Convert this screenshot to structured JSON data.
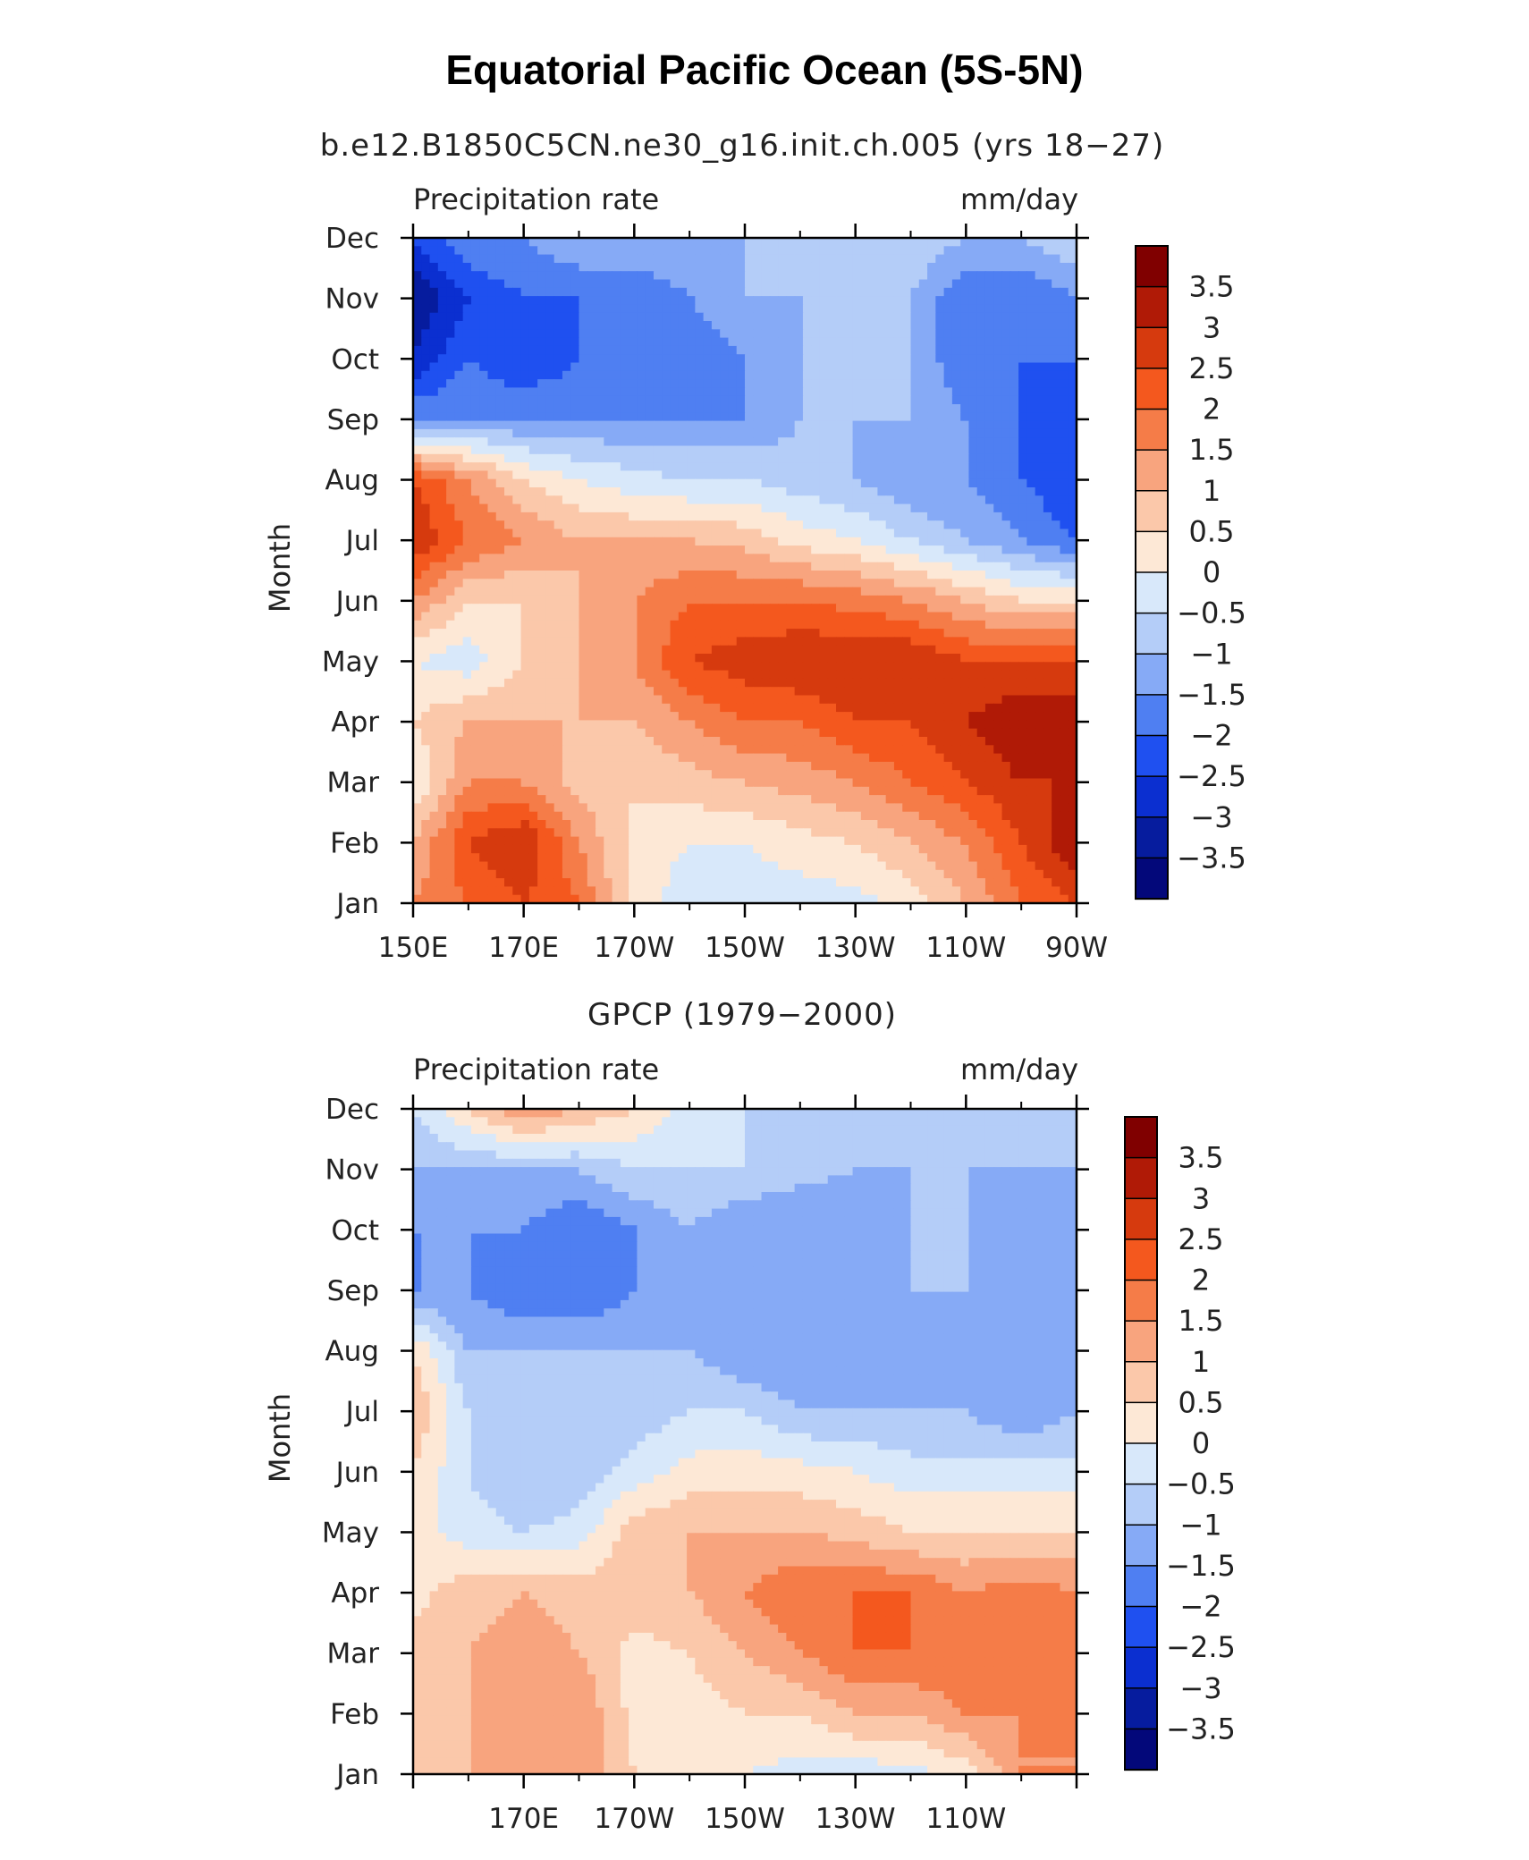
{
  "title": "Equatorial Pacific Ocean (5S-5N)",
  "colorbar": {
    "labels": [
      "3.5",
      "3",
      "2.5",
      "2",
      "1.5",
      "1",
      "0.5",
      "0",
      "−0.5",
      "−1",
      "−1.5",
      "−2",
      "−2.5",
      "−3",
      "−3.5"
    ],
    "colors": [
      "#800000",
      "#b01a06",
      "#d63a0e",
      "#f4581e",
      "#f57c48",
      "#f8a47e",
      "#fbc8aa",
      "#fde8d6",
      "#d8e8fa",
      "#b4cdf8",
      "#86aaf6",
      "#4f7ff2",
      "#1f50f0",
      "#0b2fd0",
      "#061c9e",
      "#03087a"
    ]
  },
  "chart_data": [
    {
      "type": "heatmap",
      "subtitle": "b.e12.B1850C5CN.ne30_g16.init.ch.005 (yrs 18−27)",
      "left_label": "Precipitation rate",
      "right_label": "mm/day",
      "ylabel": "Month",
      "x_tick_labels": [
        "150E",
        "170E",
        "170W",
        "150W",
        "130W",
        "110W",
        "90W"
      ],
      "y_tick_labels": [
        "Jan",
        "Feb",
        "Mar",
        "Apr",
        "May",
        "Jun",
        "Jul",
        "Aug",
        "Sep",
        "Oct",
        "Nov",
        "Dec"
      ],
      "x": [
        "150E",
        "160E",
        "170E",
        "180",
        "170W",
        "160W",
        "150W",
        "140W",
        "130W",
        "120W",
        "110W",
        "100W",
        "90W"
      ],
      "y": [
        "Jan",
        "Feb",
        "Mar",
        "Apr",
        "May",
        "Jun",
        "Jul",
        "Aug",
        "Sep",
        "Oct",
        "Nov",
        "Dec"
      ],
      "z": [
        [
          1.5,
          2.0,
          2.5,
          2.0,
          0.3,
          -0.3,
          -0.3,
          -0.3,
          -0.2,
          0.2,
          1.0,
          2.0,
          2.5
        ],
        [
          1.0,
          2.5,
          3.0,
          1.5,
          0.3,
          0.0,
          0.0,
          0.3,
          0.5,
          1.0,
          1.5,
          2.5,
          3.5
        ],
        [
          0.0,
          1.5,
          1.5,
          0.8,
          0.6,
          0.8,
          1.0,
          1.2,
          1.5,
          2.0,
          2.5,
          3.0,
          3.0
        ],
        [
          0.5,
          1.0,
          1.0,
          1.0,
          1.0,
          1.5,
          2.0,
          2.0,
          2.5,
          2.5,
          3.0,
          3.5,
          3.5
        ],
        [
          0.0,
          -0.3,
          0.5,
          1.0,
          1.5,
          2.5,
          2.8,
          3.0,
          3.0,
          3.0,
          2.5,
          2.5,
          2.5
        ],
        [
          1.5,
          0.5,
          0.5,
          1.0,
          1.5,
          2.0,
          2.0,
          2.0,
          1.8,
          1.5,
          1.0,
          0.5,
          0.5
        ],
        [
          3.0,
          2.0,
          1.5,
          1.0,
          1.0,
          1.0,
          0.8,
          0.3,
          0.0,
          -0.5,
          -1.0,
          -1.5,
          -2.0
        ],
        [
          2.5,
          1.5,
          0.5,
          0.0,
          -0.3,
          -0.5,
          -0.5,
          -0.8,
          -1.0,
          -1.5,
          -1.5,
          -2.0,
          -2.5
        ],
        [
          -1.5,
          -1.5,
          -1.5,
          -1.5,
          -1.5,
          -1.5,
          -1.5,
          -1.0,
          -1.0,
          -1.0,
          -1.5,
          -2.0,
          -2.5
        ],
        [
          -3.0,
          -2.0,
          -2.5,
          -2.0,
          -2.0,
          -2.0,
          -1.5,
          -1.0,
          -1.0,
          -1.0,
          -2.0,
          -2.0,
          -2.0
        ],
        [
          -3.5,
          -2.5,
          -2.0,
          -2.0,
          -2.0,
          -1.5,
          -1.0,
          -1.0,
          -1.0,
          -1.0,
          -2.0,
          -2.0,
          -1.5
        ],
        [
          -2.5,
          -1.5,
          -1.5,
          -1.0,
          -1.0,
          -1.0,
          -1.0,
          -0.8,
          -0.5,
          -0.5,
          -1.0,
          -1.0,
          -0.5
        ]
      ],
      "zlim": [
        -3.75,
        3.75
      ],
      "contour_levels": [
        -3.5,
        -3,
        -2.5,
        -2,
        -1.5,
        -1,
        -0.5,
        0,
        0.5,
        1,
        1.5,
        2,
        2.5,
        3,
        3.5
      ]
    },
    {
      "type": "heatmap",
      "subtitle": "GPCP (1979−2000)",
      "left_label": "Precipitation rate",
      "right_label": "mm/day",
      "ylabel": "Month",
      "x_tick_labels": [
        "170E",
        "170W",
        "150W",
        "130W",
        "110W"
      ],
      "y_tick_labels": [
        "Jan",
        "Feb",
        "Mar",
        "Apr",
        "May",
        "Jun",
        "Jul",
        "Aug",
        "Sep",
        "Oct",
        "Nov",
        "Dec"
      ],
      "x": [
        "150E",
        "160E",
        "170E",
        "180",
        "170W",
        "160W",
        "150W",
        "140W",
        "130W",
        "120W",
        "110W",
        "100W",
        "90W"
      ],
      "y": [
        "Jan",
        "Feb",
        "Mar",
        "Apr",
        "May",
        "Jun",
        "Jul",
        "Aug",
        "Sep",
        "Oct",
        "Nov",
        "Dec"
      ],
      "z": [
        [
          0.5,
          1.0,
          1.0,
          1.5,
          0.5,
          0.3,
          0.0,
          -0.2,
          -0.3,
          -0.2,
          0.2,
          1.5,
          1.5
        ],
        [
          0.5,
          1.0,
          1.5,
          1.5,
          0.3,
          0.3,
          0.5,
          0.5,
          1.0,
          1.0,
          1.5,
          1.5,
          1.5
        ],
        [
          0.8,
          1.0,
          1.3,
          1.0,
          0.3,
          0.5,
          1.0,
          1.5,
          2.0,
          2.0,
          2.0,
          2.0,
          1.5
        ],
        [
          0.3,
          0.8,
          1.0,
          0.8,
          0.8,
          1.0,
          1.5,
          2.0,
          2.0,
          2.0,
          1.5,
          1.8,
          1.5
        ],
        [
          0.3,
          -0.3,
          -0.5,
          -0.3,
          0.8,
          1.0,
          1.0,
          1.0,
          0.8,
          0.5,
          0.5,
          0.5,
          0.5
        ],
        [
          0.5,
          -0.5,
          -1.0,
          -0.8,
          -0.3,
          0.2,
          0.3,
          0.2,
          0.0,
          -0.3,
          -0.3,
          -0.3,
          -0.3
        ],
        [
          1.0,
          -0.5,
          -1.0,
          -1.0,
          -0.8,
          -0.5,
          -0.5,
          -1.0,
          -1.0,
          -1.0,
          -1.0,
          -1.5,
          -1.0
        ],
        [
          0.5,
          -1.0,
          -1.0,
          -1.0,
          -1.0,
          -1.0,
          -1.5,
          -1.5,
          -1.5,
          -1.5,
          -1.0,
          -1.5,
          -1.0
        ],
        [
          -1.5,
          -1.5,
          -2.0,
          -2.0,
          -1.5,
          -1.5,
          -1.5,
          -1.5,
          -1.5,
          -1.0,
          -1.0,
          -1.0,
          -1.0
        ],
        [
          -1.5,
          -1.5,
          -1.5,
          -2.0,
          -1.5,
          -1.0,
          -1.5,
          -1.5,
          -1.5,
          -1.0,
          -1.0,
          -1.5,
          -1.0
        ],
        [
          -1.0,
          -1.0,
          -1.0,
          -1.0,
          -0.5,
          -0.5,
          -0.5,
          -0.8,
          -1.0,
          -1.0,
          -1.0,
          -1.0,
          -1.0
        ],
        [
          -0.5,
          0.5,
          1.5,
          1.0,
          0.5,
          -0.3,
          -0.5,
          -0.5,
          -0.8,
          -0.8,
          -0.8,
          -0.8,
          -0.8
        ]
      ],
      "zlim": [
        -3.75,
        3.75
      ],
      "contour_levels": [
        -3.5,
        -3,
        -2.5,
        -2,
        -1.5,
        -1,
        -0.5,
        0,
        0.5,
        1,
        1.5,
        2,
        2.5,
        3,
        3.5
      ]
    }
  ]
}
